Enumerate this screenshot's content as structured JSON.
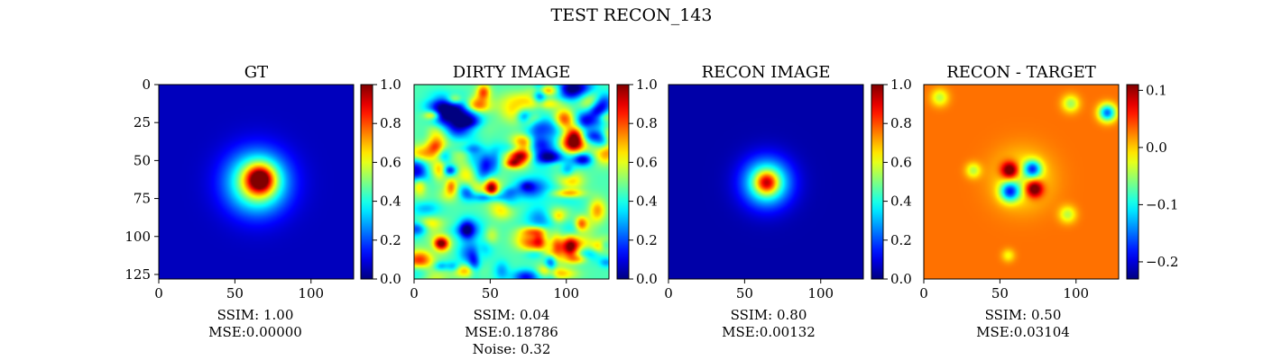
{
  "figure_title": "TEST RECON_143",
  "chart_data": [
    {
      "type": "heatmap",
      "title": "GT",
      "colormap": "jet",
      "grid": false,
      "image_size": [
        128,
        128
      ],
      "x_ticks": [
        0,
        50,
        100
      ],
      "y_ticks": [
        0,
        25,
        50,
        75,
        100,
        125
      ],
      "colorbar_range": [
        0.0,
        1.0
      ],
      "colorbar_ticks": [
        "0.0",
        "0.2",
        "0.4",
        "0.6",
        "0.8",
        "1.0"
      ],
      "colorbar_tick_values": [
        0.0,
        0.2,
        0.4,
        0.6,
        0.8,
        1.0
      ],
      "blobs": [
        {
          "x": 64,
          "y": 64,
          "sigma": 14,
          "amp": 0.55
        },
        {
          "x": 66,
          "y": 62,
          "sigma": 7,
          "amp": 0.5
        },
        {
          "x": 66,
          "y": 62,
          "sigma": 3.5,
          "amp": 0.25
        }
      ],
      "background": 0.06,
      "caption": [
        "SSIM: 1.00",
        "MSE:0.00000"
      ]
    },
    {
      "type": "heatmap",
      "title": "DIRTY IMAGE",
      "colormap": "jet",
      "grid": false,
      "image_size": [
        128,
        128
      ],
      "x_ticks": [
        0,
        50,
        100
      ],
      "colorbar_range": [
        0.0,
        1.0
      ],
      "colorbar_ticks": [
        "0.0",
        "0.2",
        "0.4",
        "0.6",
        "0.8",
        "1.0"
      ],
      "colorbar_tick_values": [
        0.0,
        0.2,
        0.4,
        0.6,
        0.8,
        1.0
      ],
      "noise_field": true,
      "caption": [
        "SSIM: 0.04",
        "MSE:0.18786",
        "Noise: 0.32"
      ]
    },
    {
      "type": "heatmap",
      "title": "RECON IMAGE",
      "colormap": "jet",
      "grid": false,
      "image_size": [
        128,
        128
      ],
      "x_ticks": [
        0,
        50,
        100
      ],
      "colorbar_range": [
        0.0,
        1.0
      ],
      "colorbar_ticks": [
        "0.0",
        "0.2",
        "0.4",
        "0.6",
        "0.8",
        "1.0"
      ],
      "colorbar_tick_values": [
        0.0,
        0.2,
        0.4,
        0.6,
        0.8,
        1.0
      ],
      "blobs": [
        {
          "x": 64,
          "y": 64,
          "sigma": 11,
          "amp": 0.5
        },
        {
          "x": 64,
          "y": 64,
          "sigma": 5,
          "amp": 0.4
        }
      ],
      "background": 0.04,
      "caption": [
        "SSIM: 0.80",
        "MSE:0.00132"
      ]
    },
    {
      "type": "heatmap",
      "title": "RECON - TARGET",
      "colormap": "jet",
      "grid": false,
      "image_size": [
        128,
        128
      ],
      "x_ticks": [
        0,
        50,
        100
      ],
      "colorbar_range": [
        -0.23,
        0.11
      ],
      "colorbar_ticks": [
        "0.1",
        "0.0",
        "−0.1",
        "−0.2"
      ],
      "colorbar_tick_values": [
        0.1,
        0.0,
        -0.1,
        -0.2
      ],
      "blobs": [
        {
          "x": 56,
          "y": 56,
          "sigma": 4,
          "amp": 0.15
        },
        {
          "x": 72,
          "y": 68,
          "sigma": 4,
          "amp": 0.15
        },
        {
          "x": 71,
          "y": 55,
          "sigma": 4,
          "amp": -0.16
        },
        {
          "x": 56,
          "y": 70,
          "sigma": 4.5,
          "amp": -0.17
        },
        {
          "x": 64,
          "y": 62,
          "sigma": 13,
          "amp": -0.06
        },
        {
          "x": 120,
          "y": 18,
          "sigma": 4,
          "amp": -0.18
        },
        {
          "x": 96,
          "y": 12,
          "sigma": 4,
          "amp": -0.08
        },
        {
          "x": 10,
          "y": 8,
          "sigma": 4,
          "amp": -0.07
        },
        {
          "x": 32,
          "y": 56,
          "sigma": 3.5,
          "amp": -0.07
        },
        {
          "x": 94,
          "y": 85,
          "sigma": 4,
          "amp": -0.07
        },
        {
          "x": 55,
          "y": 112,
          "sigma": 3,
          "amp": -0.05
        }
      ],
      "background": 0.03,
      "caption": [
        "SSIM: 0.50",
        "MSE:0.03104"
      ]
    }
  ]
}
